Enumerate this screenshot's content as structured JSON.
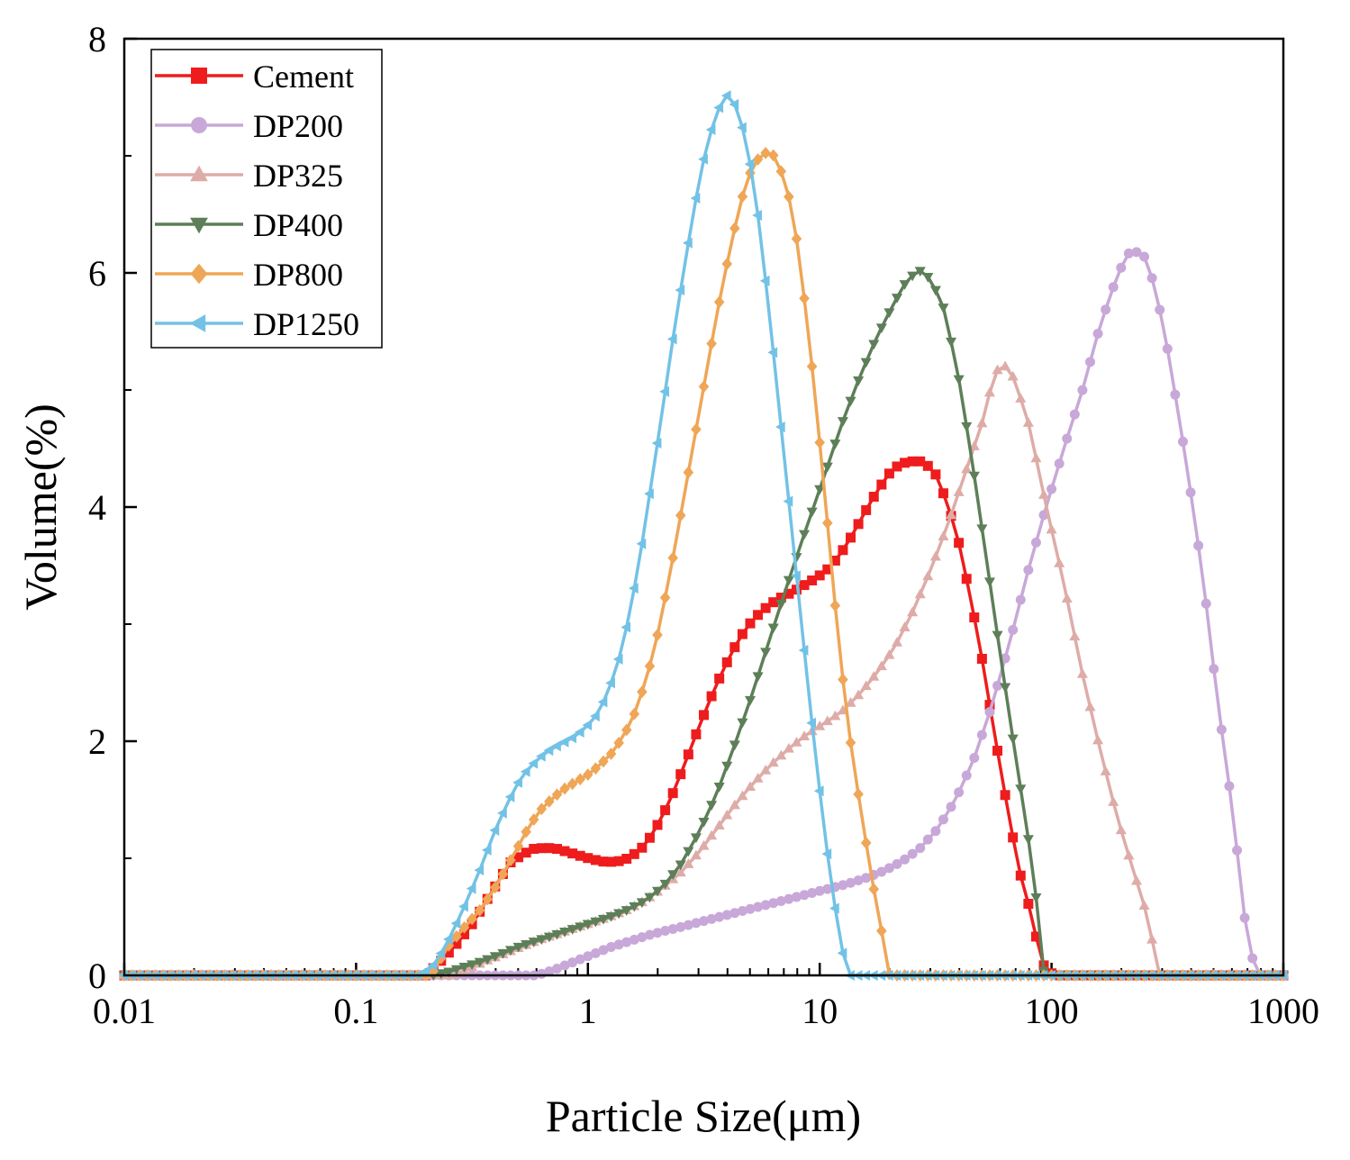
{
  "chart_data": {
    "type": "line",
    "xscale": "log",
    "xlabel": "Particle Size(μm)",
    "ylabel": "Volume(%)",
    "xlim": [
      0.01,
      1000
    ],
    "ylim": [
      0,
      8
    ],
    "xticks": [
      0.01,
      0.1,
      1,
      10,
      100,
      1000
    ],
    "xtick_labels": [
      "0.01",
      "0.1",
      "1",
      "10",
      "100",
      "1000"
    ],
    "yticks": [
      0,
      2,
      4,
      6,
      8
    ],
    "ytick_labels": [
      "0",
      "2",
      "4",
      "6",
      "8"
    ],
    "legend_position": "top-left",
    "series": [
      {
        "name": "Cement",
        "color": "#ee1c1c",
        "marker": "square",
        "points": [
          [
            0.01,
            0
          ],
          [
            0.2,
            0
          ],
          [
            0.24,
            0.15
          ],
          [
            0.28,
            0.3
          ],
          [
            0.32,
            0.45
          ],
          [
            0.36,
            0.62
          ],
          [
            0.41,
            0.8
          ],
          [
            0.46,
            0.96
          ],
          [
            0.52,
            1.03
          ],
          [
            0.58,
            1.08
          ],
          [
            0.66,
            1.09
          ],
          [
            0.74,
            1.08
          ],
          [
            0.83,
            1.05
          ],
          [
            0.93,
            1.02
          ],
          [
            1.05,
            0.99
          ],
          [
            1.18,
            0.97
          ],
          [
            1.33,
            0.97
          ],
          [
            1.49,
            1.0
          ],
          [
            1.68,
            1.07
          ],
          [
            1.89,
            1.2
          ],
          [
            2.12,
            1.38
          ],
          [
            2.38,
            1.6
          ],
          [
            2.68,
            1.86
          ],
          [
            3.01,
            2.12
          ],
          [
            3.39,
            2.37
          ],
          [
            3.81,
            2.6
          ],
          [
            4.29,
            2.8
          ],
          [
            4.82,
            2.97
          ],
          [
            5.42,
            3.08
          ],
          [
            6.1,
            3.17
          ],
          [
            6.86,
            3.23
          ],
          [
            7.72,
            3.28
          ],
          [
            8.68,
            3.34
          ],
          [
            9.76,
            3.4
          ],
          [
            11.0,
            3.48
          ],
          [
            12.3,
            3.6
          ],
          [
            13.9,
            3.77
          ],
          [
            15.6,
            3.95
          ],
          [
            17.6,
            4.13
          ],
          [
            19.8,
            4.28
          ],
          [
            22.2,
            4.37
          ],
          [
            25.0,
            4.39
          ],
          [
            28.1,
            4.39
          ],
          [
            31.6,
            4.28
          ],
          [
            35.6,
            4.03
          ],
          [
            40.0,
            3.68
          ],
          [
            45.0,
            3.2
          ],
          [
            50.6,
            2.66
          ],
          [
            56.9,
            2.05
          ],
          [
            64.0,
            1.47
          ],
          [
            72.0,
            0.92
          ],
          [
            81.0,
            0.55
          ],
          [
            91.1,
            0.1
          ],
          [
            102.0,
            0.0
          ],
          [
            1000,
            0
          ]
        ]
      },
      {
        "name": "DP200",
        "color": "#c8a8d8",
        "marker": "circle",
        "points": [
          [
            0.01,
            0
          ],
          [
            0.6,
            0
          ],
          [
            0.72,
            0.05
          ],
          [
            0.88,
            0.12
          ],
          [
            1.05,
            0.18
          ],
          [
            1.25,
            0.24
          ],
          [
            1.5,
            0.29
          ],
          [
            1.8,
            0.34
          ],
          [
            2.15,
            0.38
          ],
          [
            2.6,
            0.42
          ],
          [
            3.1,
            0.46
          ],
          [
            3.7,
            0.5
          ],
          [
            4.45,
            0.54
          ],
          [
            5.3,
            0.58
          ],
          [
            6.4,
            0.62
          ],
          [
            7.6,
            0.66
          ],
          [
            9.1,
            0.7
          ],
          [
            10.9,
            0.74
          ],
          [
            13.1,
            0.78
          ],
          [
            15.7,
            0.83
          ],
          [
            18.8,
            0.89
          ],
          [
            22.5,
            0.97
          ],
          [
            26.9,
            1.08
          ],
          [
            32.2,
            1.25
          ],
          [
            38.5,
            1.5
          ],
          [
            46.1,
            1.84
          ],
          [
            55.2,
            2.3
          ],
          [
            66.1,
            2.85
          ],
          [
            79.1,
            3.45
          ],
          [
            94.7,
            4.0
          ],
          [
            113,
            4.5
          ],
          [
            136,
            5.0
          ],
          [
            162,
            5.55
          ],
          [
            194,
            6.0
          ],
          [
            220,
            6.2
          ],
          [
            250,
            6.15
          ],
          [
            280,
            5.88
          ],
          [
            320,
            5.3
          ],
          [
            380,
            4.4
          ],
          [
            450,
            3.4
          ],
          [
            520,
            2.35
          ],
          [
            600,
            1.45
          ],
          [
            680,
            0.5
          ],
          [
            760,
            0.0
          ],
          [
            1000,
            0
          ]
        ]
      },
      {
        "name": "DP325",
        "color": "#deaca8",
        "marker": "triangle-up",
        "points": [
          [
            0.01,
            0
          ],
          [
            0.26,
            0
          ],
          [
            0.3,
            0.05
          ],
          [
            0.36,
            0.12
          ],
          [
            0.43,
            0.18
          ],
          [
            0.51,
            0.24
          ],
          [
            0.61,
            0.3
          ],
          [
            0.73,
            0.35
          ],
          [
            0.87,
            0.4
          ],
          [
            1.04,
            0.45
          ],
          [
            1.24,
            0.5
          ],
          [
            1.48,
            0.56
          ],
          [
            1.77,
            0.64
          ],
          [
            2.11,
            0.75
          ],
          [
            2.52,
            0.88
          ],
          [
            3.01,
            1.05
          ],
          [
            3.59,
            1.25
          ],
          [
            4.28,
            1.45
          ],
          [
            5.11,
            1.63
          ],
          [
            6.1,
            1.79
          ],
          [
            7.28,
            1.93
          ],
          [
            8.68,
            2.05
          ],
          [
            10.4,
            2.15
          ],
          [
            12.4,
            2.25
          ],
          [
            14.8,
            2.4
          ],
          [
            17.6,
            2.58
          ],
          [
            21.0,
            2.8
          ],
          [
            25.1,
            3.1
          ],
          [
            29.9,
            3.45
          ],
          [
            35.7,
            3.85
          ],
          [
            42.6,
            4.3
          ],
          [
            50.8,
            4.75
          ],
          [
            56.0,
            5.1
          ],
          [
            61.0,
            5.24
          ],
          [
            69.0,
            5.1
          ],
          [
            80.0,
            4.7
          ],
          [
            95.0,
            4.0
          ],
          [
            113,
            3.35
          ],
          [
            135,
            2.6
          ],
          [
            161,
            1.95
          ],
          [
            192,
            1.35
          ],
          [
            229,
            0.85
          ],
          [
            260,
            0.5
          ],
          [
            290,
            0.0
          ],
          [
            1000,
            0
          ]
        ]
      },
      {
        "name": "DP400",
        "color": "#5d7f58",
        "marker": "triangle-down",
        "points": [
          [
            0.01,
            0
          ],
          [
            0.21,
            0
          ],
          [
            0.25,
            0.03
          ],
          [
            0.3,
            0.08
          ],
          [
            0.36,
            0.13
          ],
          [
            0.43,
            0.19
          ],
          [
            0.51,
            0.25
          ],
          [
            0.61,
            0.3
          ],
          [
            0.73,
            0.35
          ],
          [
            0.87,
            0.4
          ],
          [
            1.04,
            0.45
          ],
          [
            1.24,
            0.5
          ],
          [
            1.48,
            0.56
          ],
          [
            1.77,
            0.64
          ],
          [
            2.11,
            0.76
          ],
          [
            2.52,
            0.95
          ],
          [
            3.01,
            1.22
          ],
          [
            3.59,
            1.55
          ],
          [
            4.28,
            1.96
          ],
          [
            5.11,
            2.4
          ],
          [
            6.1,
            2.88
          ],
          [
            7.28,
            3.35
          ],
          [
            8.68,
            3.8
          ],
          [
            10.4,
            4.25
          ],
          [
            12.4,
            4.7
          ],
          [
            14.8,
            5.1
          ],
          [
            17.6,
            5.45
          ],
          [
            21.0,
            5.75
          ],
          [
            24.0,
            5.95
          ],
          [
            27.0,
            6.02
          ],
          [
            30.0,
            5.95
          ],
          [
            34.0,
            5.72
          ],
          [
            39.0,
            5.2
          ],
          [
            45.0,
            4.45
          ],
          [
            52.0,
            3.6
          ],
          [
            60.0,
            2.75
          ],
          [
            69.0,
            1.95
          ],
          [
            79.0,
            1.2
          ],
          [
            88.0,
            0.5
          ],
          [
            93.0,
            0.0
          ],
          [
            1000,
            0
          ]
        ]
      },
      {
        "name": "DP800",
        "color": "#efa656",
        "marker": "diamond",
        "points": [
          [
            0.01,
            0
          ],
          [
            0.21,
            0
          ],
          [
            0.25,
            0.25
          ],
          [
            0.29,
            0.4
          ],
          [
            0.34,
            0.55
          ],
          [
            0.39,
            0.72
          ],
          [
            0.44,
            0.9
          ],
          [
            0.5,
            1.1
          ],
          [
            0.56,
            1.28
          ],
          [
            0.63,
            1.42
          ],
          [
            0.71,
            1.52
          ],
          [
            0.8,
            1.6
          ],
          [
            0.9,
            1.66
          ],
          [
            1.01,
            1.72
          ],
          [
            1.13,
            1.8
          ],
          [
            1.27,
            1.9
          ],
          [
            1.43,
            2.05
          ],
          [
            1.6,
            2.25
          ],
          [
            1.8,
            2.55
          ],
          [
            2.02,
            2.95
          ],
          [
            2.27,
            3.45
          ],
          [
            2.55,
            4.0
          ],
          [
            2.86,
            4.55
          ],
          [
            3.21,
            5.1
          ],
          [
            3.6,
            5.65
          ],
          [
            4.05,
            6.15
          ],
          [
            4.55,
            6.6
          ],
          [
            5.1,
            6.9
          ],
          [
            5.7,
            7.03
          ],
          [
            6.4,
            7.0
          ],
          [
            7.2,
            6.75
          ],
          [
            8.1,
            6.2
          ],
          [
            9.1,
            5.35
          ],
          [
            10.3,
            4.3
          ],
          [
            11.6,
            3.2
          ],
          [
            13.1,
            2.2
          ],
          [
            14.8,
            1.5
          ],
          [
            16.7,
            0.85
          ],
          [
            18.8,
            0.3
          ],
          [
            20.0,
            0.0
          ],
          [
            1000,
            0
          ]
        ]
      },
      {
        "name": "DP1250",
        "color": "#72c2e6",
        "marker": "triangle-left",
        "points": [
          [
            0.01,
            0
          ],
          [
            0.19,
            0
          ],
          [
            0.22,
            0.1
          ],
          [
            0.25,
            0.3
          ],
          [
            0.28,
            0.5
          ],
          [
            0.31,
            0.7
          ],
          [
            0.35,
            0.95
          ],
          [
            0.39,
            1.2
          ],
          [
            0.44,
            1.43
          ],
          [
            0.49,
            1.62
          ],
          [
            0.55,
            1.76
          ],
          [
            0.62,
            1.86
          ],
          [
            0.69,
            1.93
          ],
          [
            0.77,
            1.98
          ],
          [
            0.86,
            2.03
          ],
          [
            0.96,
            2.1
          ],
          [
            1.07,
            2.2
          ],
          [
            1.2,
            2.38
          ],
          [
            1.34,
            2.65
          ],
          [
            1.5,
            3.05
          ],
          [
            1.67,
            3.55
          ],
          [
            1.86,
            4.15
          ],
          [
            2.08,
            4.78
          ],
          [
            2.32,
            5.42
          ],
          [
            2.59,
            6.02
          ],
          [
            2.89,
            6.58
          ],
          [
            3.22,
            7.05
          ],
          [
            3.6,
            7.38
          ],
          [
            4.0,
            7.52
          ],
          [
            4.45,
            7.4
          ],
          [
            4.95,
            7.0
          ],
          [
            5.5,
            6.4
          ],
          [
            6.1,
            5.6
          ],
          [
            6.8,
            4.7
          ],
          [
            7.6,
            3.78
          ],
          [
            8.5,
            2.85
          ],
          [
            9.5,
            1.95
          ],
          [
            10.6,
            1.15
          ],
          [
            11.8,
            0.5
          ],
          [
            13.1,
            0.0
          ],
          [
            1000,
            0
          ]
        ]
      }
    ]
  }
}
